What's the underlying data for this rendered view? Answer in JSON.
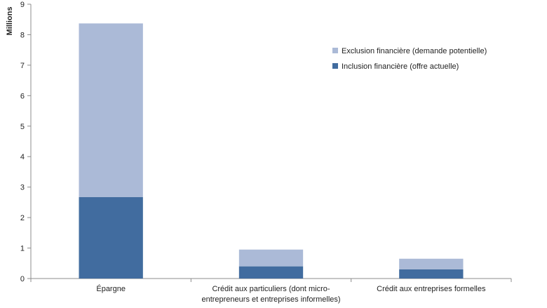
{
  "chart_data": {
    "type": "bar",
    "stacked": true,
    "title": "",
    "xlabel": "",
    "ylabel": "Millions",
    "ylim": [
      0,
      9
    ],
    "yticks": [
      0,
      1,
      2,
      3,
      4,
      5,
      6,
      7,
      8,
      9
    ],
    "grid": false,
    "legend_position": "top-right",
    "categories": [
      [
        "Épargne"
      ],
      [
        "Crédit aux particuliers (dont micro-",
        "entrepreneurs et entreprises informelles)"
      ],
      [
        "Crédit aux entreprises formelles"
      ]
    ],
    "series": [
      {
        "name": "Inclusion financière (offre actuelle)",
        "color": "#416c9f",
        "values": [
          2.67,
          0.4,
          0.3
        ]
      },
      {
        "name": "Exclusion financière (demande potentielle)",
        "color": "#abbad7",
        "values": [
          5.7,
          0.55,
          0.35
        ]
      }
    ]
  }
}
